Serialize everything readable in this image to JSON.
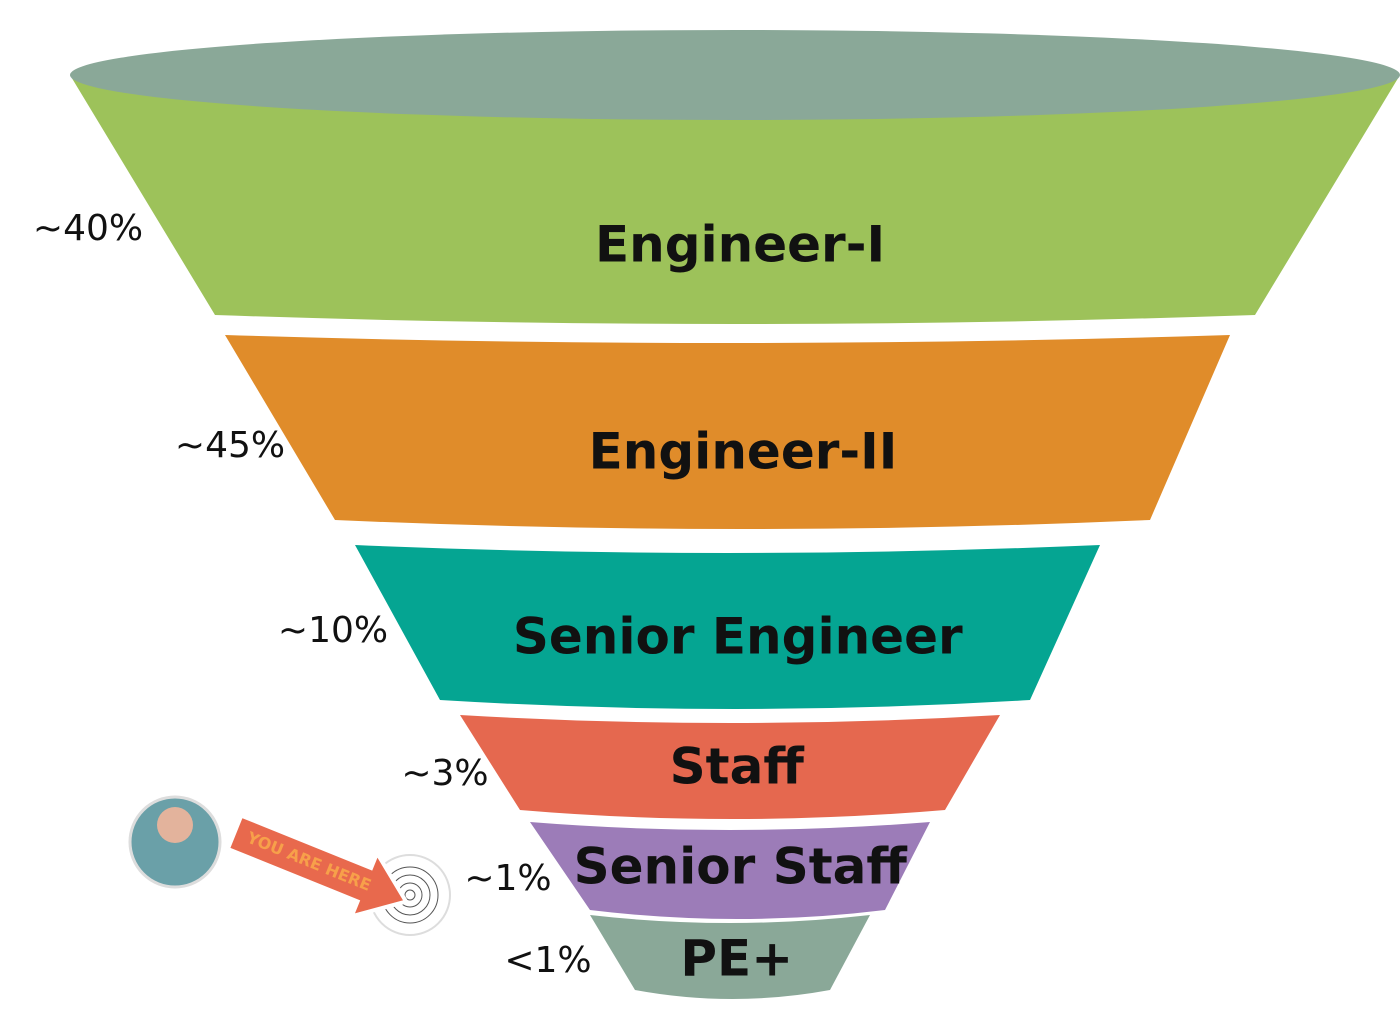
{
  "levels": [
    {
      "label": "Engineer-I",
      "share": "~40%"
    },
    {
      "label": "Engineer-II",
      "share": "~45%"
    },
    {
      "label": "Senior Engineer",
      "share": "~10%"
    },
    {
      "label": "Staff",
      "share": "~3%"
    },
    {
      "label": "Senior Staff",
      "share": "~1%"
    },
    {
      "label": "PE+",
      "share": "<1%"
    }
  ],
  "marker": {
    "label": "YOU ARE HERE"
  }
}
